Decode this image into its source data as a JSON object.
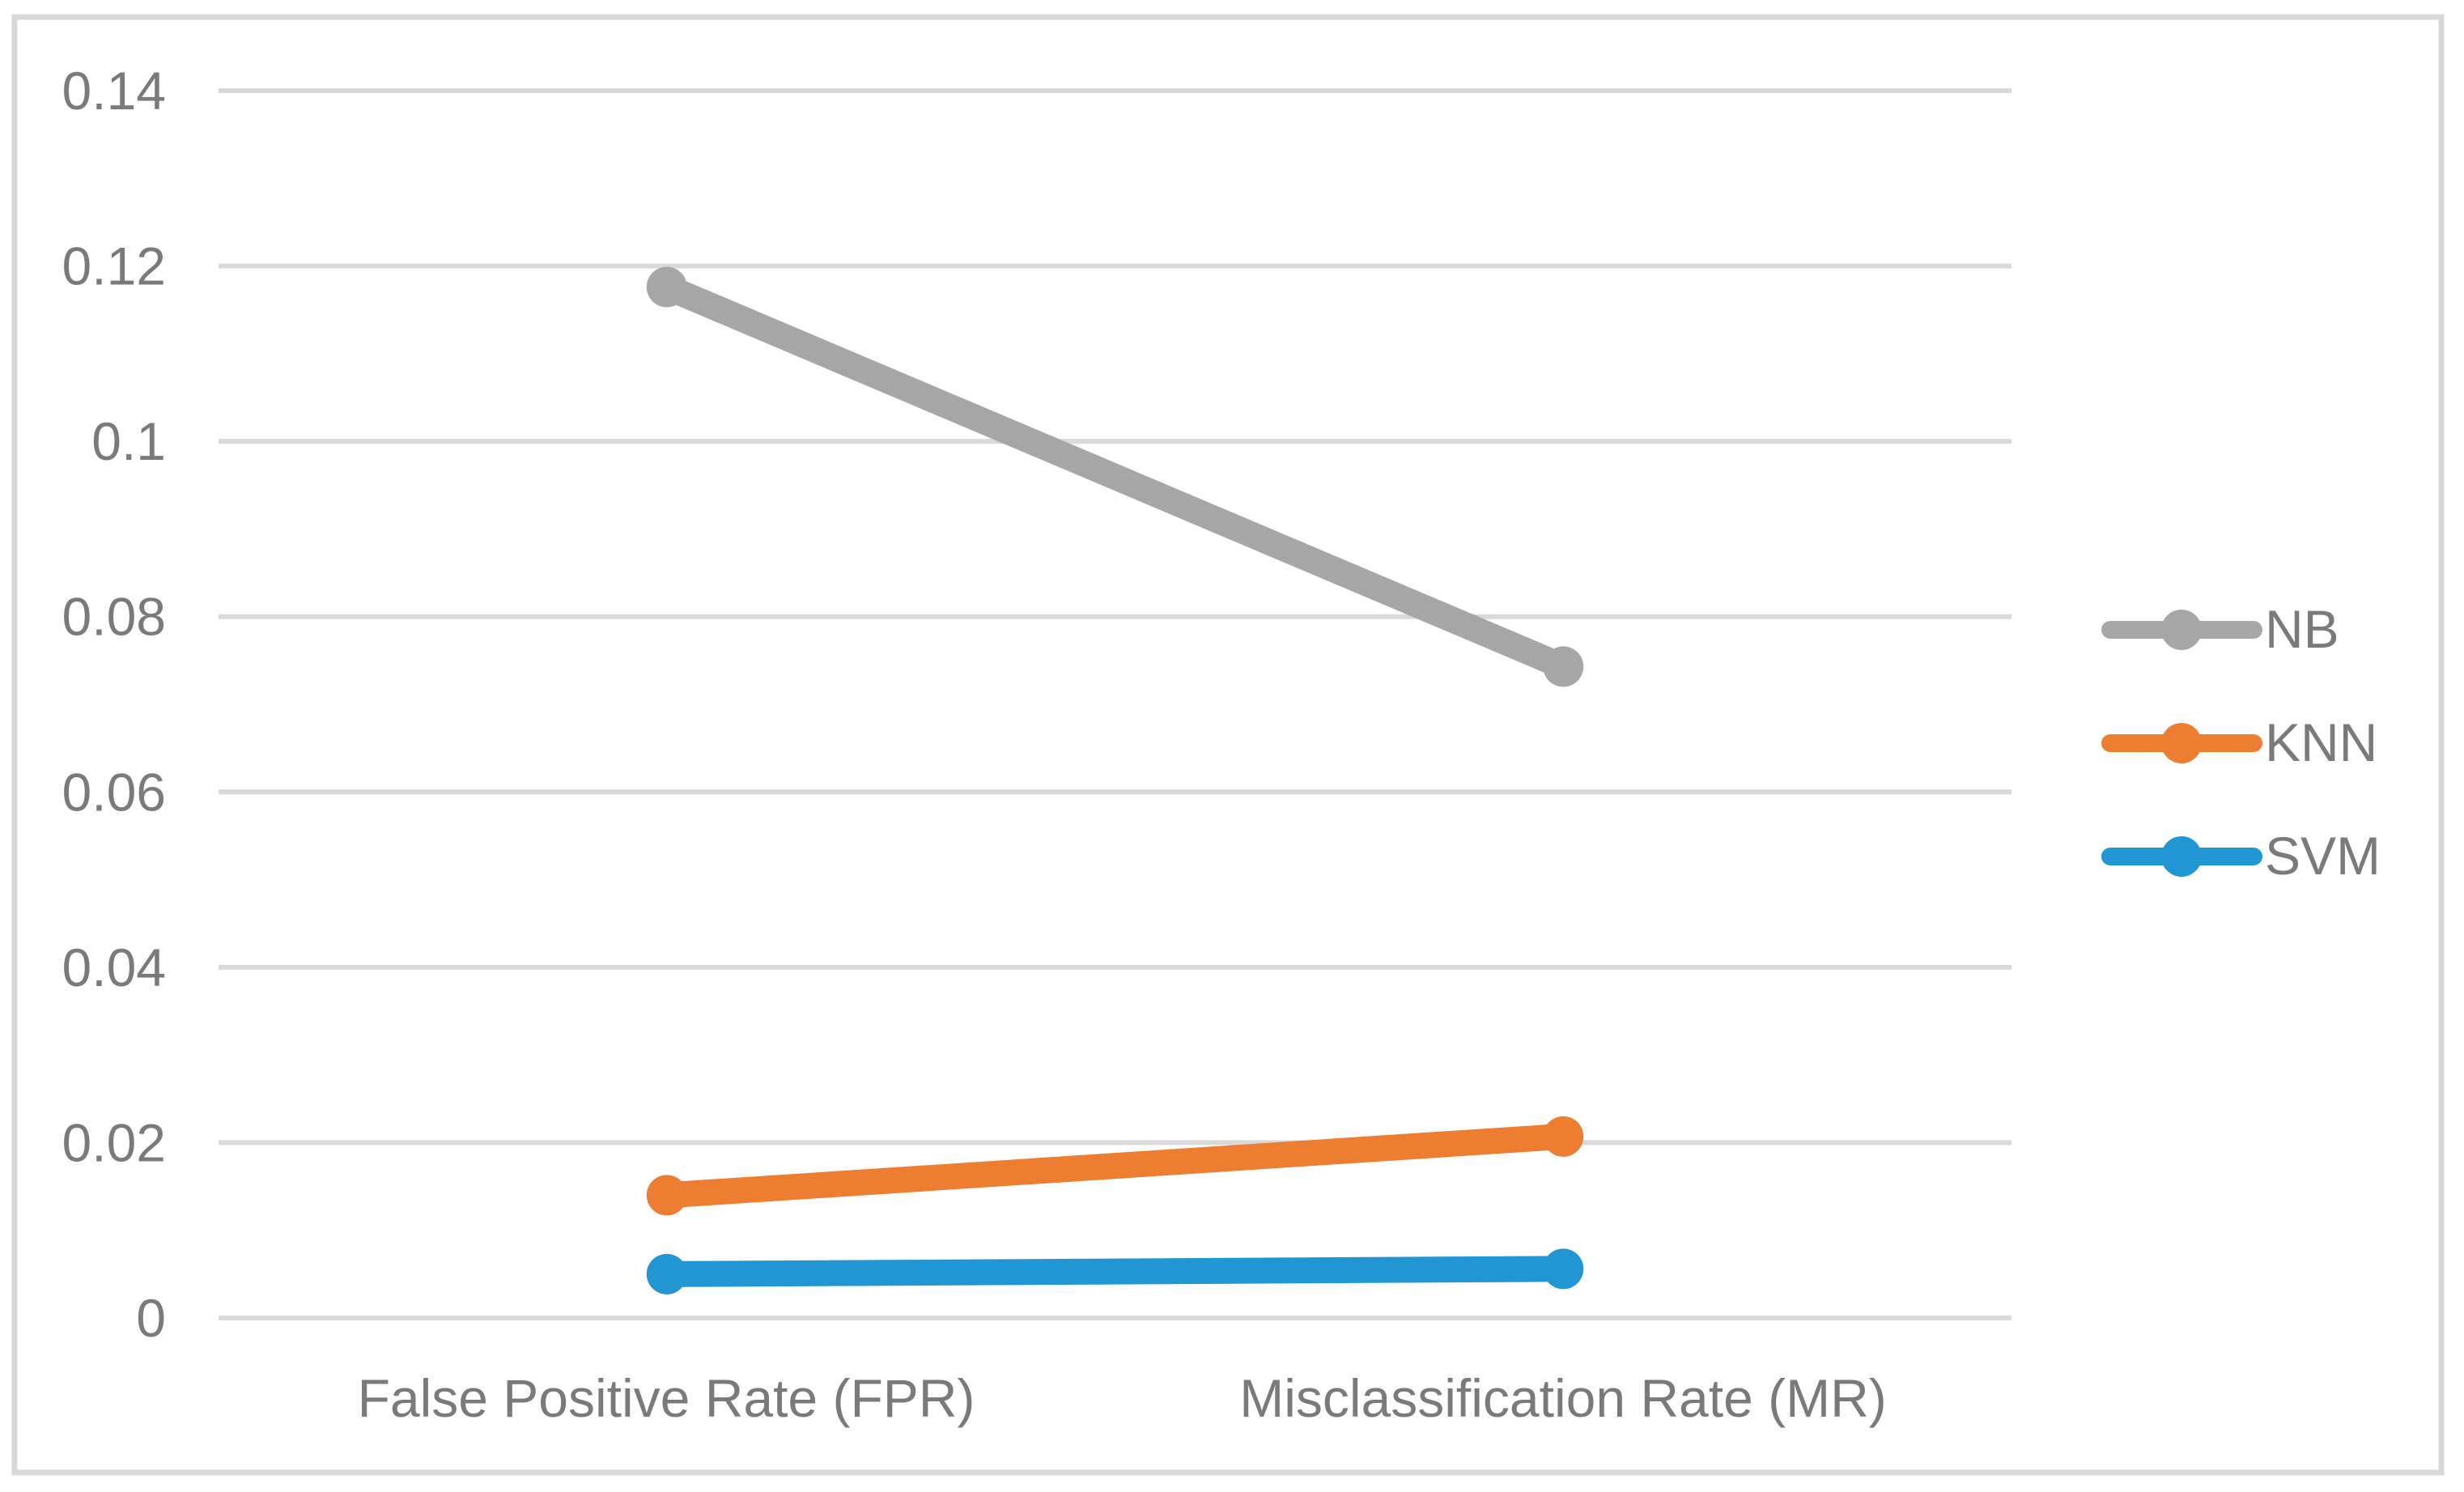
{
  "figure": {
    "background": "#FFFFFF",
    "frame_color": "#D8D8D8"
  },
  "chart_data": {
    "type": "line",
    "title": "",
    "xlabel": "",
    "ylabel": "",
    "categories": [
      "False Positive Rate (FPR)",
      "Misclassification Rate (MR)"
    ],
    "series": [
      {
        "name": "NB",
        "color": "#A6A6A6",
        "values": [
          0.1176,
          0.0743
        ]
      },
      {
        "name": "KNN",
        "color": "#ED7D31",
        "values": [
          0.014,
          0.0207
        ]
      },
      {
        "name": "SVM",
        "color": "#2196D3",
        "values": [
          0.005,
          0.0056
        ]
      }
    ],
    "ylim": [
      0,
      0.14
    ],
    "yticks": [
      0,
      0.02,
      0.04,
      0.06,
      0.08,
      0.1,
      0.12,
      0.14
    ],
    "grid": true,
    "gridline_color": "#D9D9D9",
    "tick_label_color": "#7A7A7A",
    "legend_position": "right",
    "legend_labels": [
      "NB",
      "KNN",
      "SVM"
    ]
  }
}
